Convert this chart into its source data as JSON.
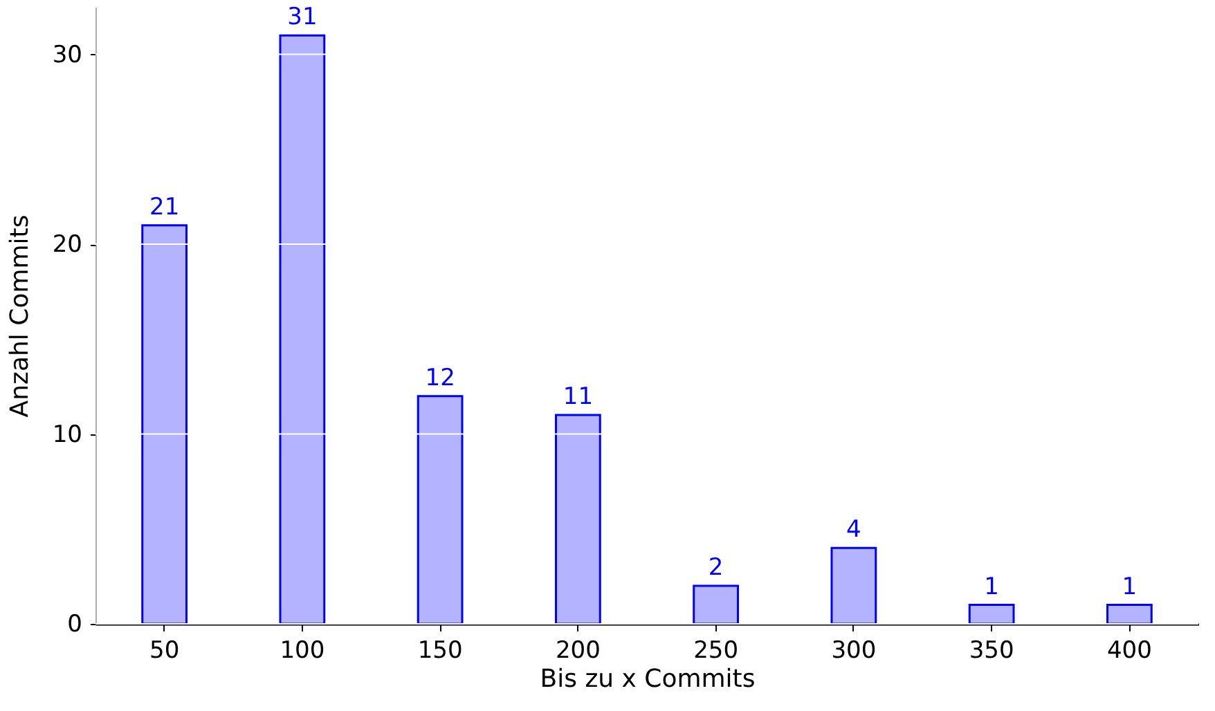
{
  "chart_data": {
    "type": "bar",
    "xlabel": "Bis zu x Commits",
    "ylabel": "Anzahl Commits",
    "categories": [
      "50",
      "100",
      "150",
      "200",
      "250",
      "300",
      "350",
      "400"
    ],
    "series": [
      {
        "color": "#b3b3ff",
        "values": [
          21,
          31,
          12,
          11,
          2,
          4,
          1,
          1
        ]
      }
    ],
    "ylim": [
      0,
      32.5
    ],
    "yticks": [
      0,
      10,
      20,
      30
    ],
    "grid": "y",
    "data_labels": true
  }
}
